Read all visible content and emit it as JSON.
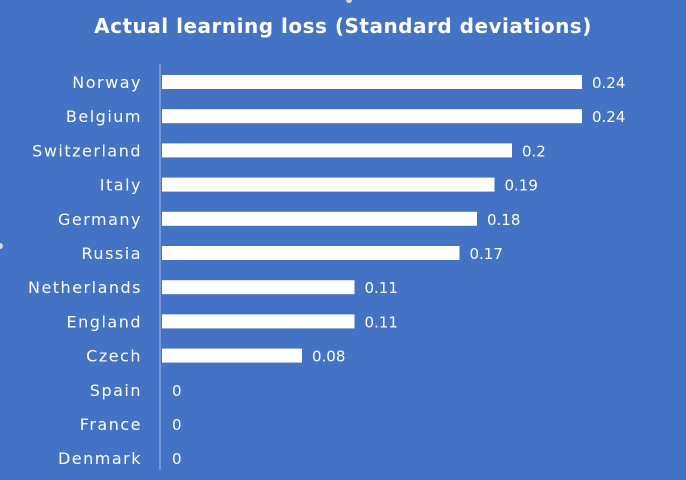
{
  "chart_data": {
    "type": "bar",
    "orientation": "horizontal",
    "title": "Actual learning loss (Standard deviations)",
    "xlabel": "",
    "ylabel": "",
    "categories": [
      "Norway",
      "Belgium",
      "Switzerland",
      "Italy",
      "Germany",
      "Russia",
      "Netherlands",
      "England",
      "Czech",
      "Spain",
      "France",
      "Denmark"
    ],
    "values": [
      0.24,
      0.24,
      0.2,
      0.19,
      0.18,
      0.17,
      0.11,
      0.11,
      0.08,
      0,
      0,
      0
    ],
    "value_labels": [
      "0.24",
      "0.24",
      "0.2",
      "0.19",
      "0.18",
      "0.17",
      "0.11",
      "0.11",
      "0.08",
      "0",
      "0",
      "0"
    ],
    "xlim": [
      0,
      0.24
    ],
    "grid": false,
    "legend": "none",
    "colors": {
      "background": "#4472C4",
      "bar": "#FFFFFF",
      "text": "#FFFFFF",
      "axis": "#A9BEE6"
    }
  }
}
